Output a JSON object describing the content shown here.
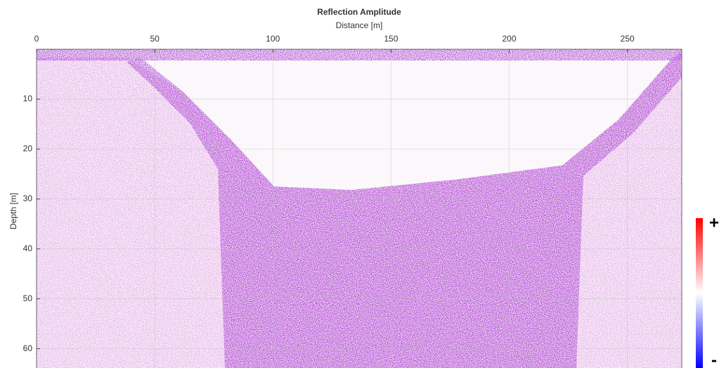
{
  "chart_data": {
    "type": "heatmap",
    "title": "Reflection Amplitude",
    "x_label": "Distance [m]",
    "y_label": "Depth [m]",
    "xlim": [
      0,
      273
    ],
    "ylim": [
      0,
      64
    ],
    "xticks": [
      0,
      50,
      100,
      150,
      200,
      250
    ],
    "yticks": [
      10,
      20,
      30,
      40,
      50,
      60
    ],
    "y_reversed": true,
    "x_axis_position": "top",
    "grid": true,
    "colorbar": {
      "labels": [
        "+",
        "-"
      ],
      "colors": [
        "#ff0000",
        "#ffffff",
        "#0000ff"
      ]
    }
  }
}
